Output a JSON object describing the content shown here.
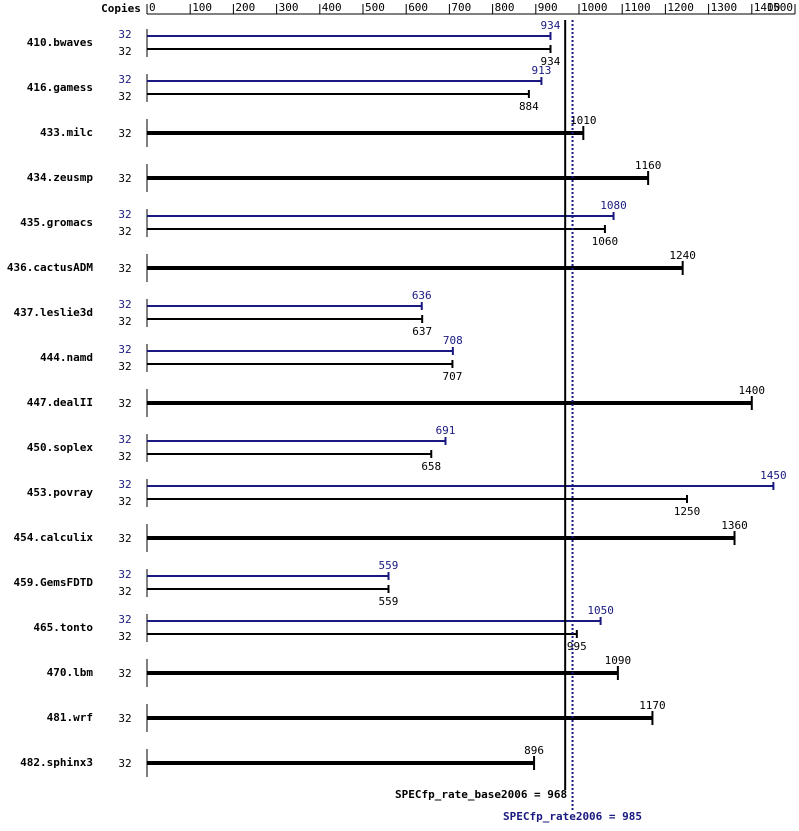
{
  "chart_data": {
    "type": "bar",
    "copies_header": "Copies",
    "xlim": [
      0,
      1500
    ],
    "xticks": [
      0,
      100,
      200,
      300,
      400,
      500,
      600,
      700,
      800,
      900,
      1000,
      1100,
      1200,
      1300,
      1400,
      1500
    ],
    "categories": [
      "410.bwaves",
      "416.gamess",
      "433.milc",
      "434.zeusmp",
      "435.gromacs",
      "436.cactusADM",
      "437.leslie3d",
      "444.namd",
      "447.dealII",
      "450.soplex",
      "453.povray",
      "454.calculix",
      "459.GemsFDTD",
      "465.tonto",
      "470.lbm",
      "481.wrf",
      "482.sphinx3"
    ],
    "series": [
      {
        "color": "#000000",
        "copies": [
          32,
          32,
          32,
          32,
          32,
          32,
          32,
          32,
          32,
          32,
          32,
          32,
          32,
          32,
          32,
          32,
          32
        ],
        "values": [
          934,
          884,
          1010,
          1160,
          1060,
          1240,
          637,
          707,
          1400,
          658,
          1250,
          1360,
          559,
          995,
          1090,
          1170,
          896
        ]
      },
      {
        "color": "#191980",
        "copies": [
          32,
          32,
          null,
          null,
          32,
          null,
          32,
          32,
          null,
          32,
          32,
          null,
          32,
          32,
          null,
          null,
          null
        ],
        "values": [
          934,
          913,
          null,
          null,
          1080,
          null,
          636,
          708,
          null,
          691,
          1450,
          null,
          559,
          1050,
          null,
          null,
          null
        ]
      }
    ],
    "reference_lines": [
      {
        "value": 968,
        "label": "SPECfp_rate_base2006 = 968",
        "color": "#000000",
        "dashed": false
      },
      {
        "value": 985,
        "label": "SPECfp_rate2006 = 985",
        "color": "#191980",
        "dashed": true
      }
    ]
  }
}
